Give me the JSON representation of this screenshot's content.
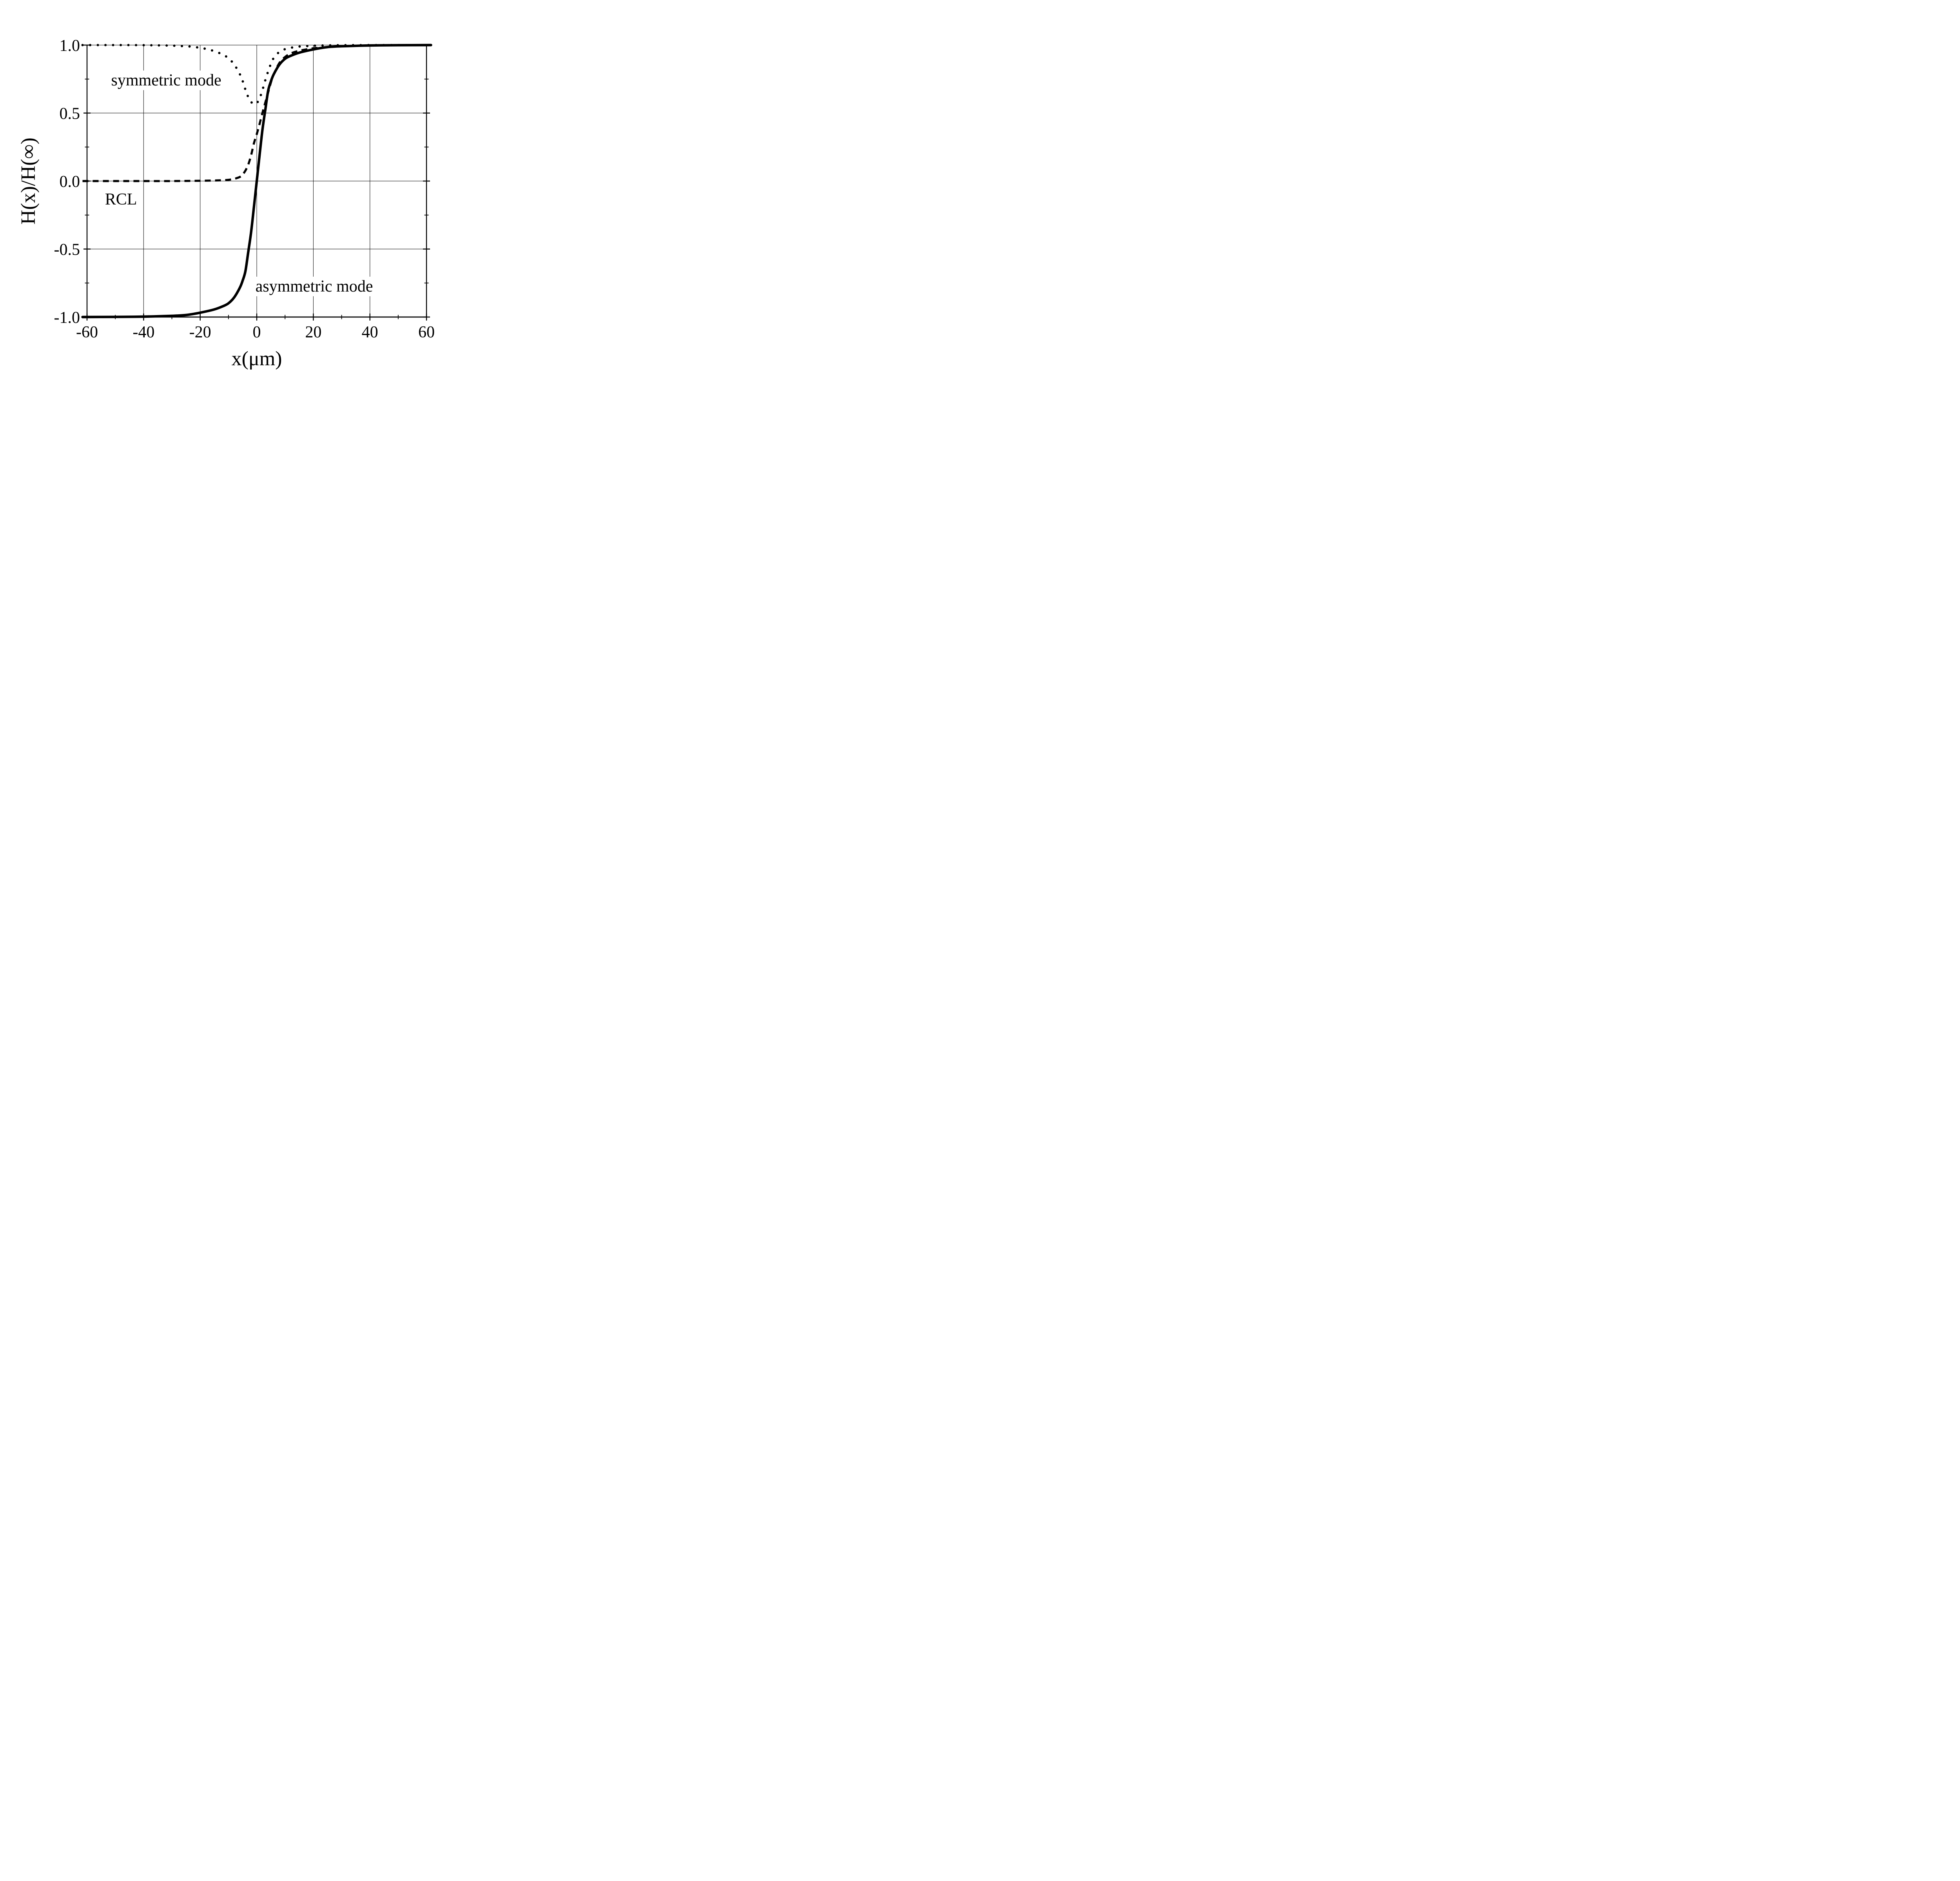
{
  "chart_data": {
    "type": "line",
    "title": "",
    "xlabel": "x(μm)",
    "ylabel": "H(x)/H(∞)",
    "xlim": [
      -60,
      60
    ],
    "ylim": [
      -1.0,
      1.0
    ],
    "grid": true,
    "legend_position": "none",
    "colors": {
      "line": "#000000",
      "background": "#ffffff"
    },
    "x_major_ticks": [
      -60,
      -40,
      -20,
      0,
      20,
      40,
      60
    ],
    "x_minor_ticks": [
      -50,
      -30,
      -10,
      10,
      30,
      50
    ],
    "y_major_ticks": [
      -1.0,
      -0.5,
      0.0,
      0.5,
      1.0
    ],
    "y_minor_ticks": [
      -0.75,
      -0.25,
      0.25,
      0.75
    ],
    "x_tick_labels": [
      "-60",
      "-40",
      "-20",
      "0",
      "20",
      "40",
      "60"
    ],
    "y_tick_labels": [
      "-1.0",
      "-0.5",
      "0.0",
      "0.5",
      "1.0"
    ],
    "x_gridlines": [
      -40,
      -20,
      0,
      20,
      40
    ],
    "y_gridlines": [
      1.0,
      0.5,
      0.0,
      -0.5
    ],
    "series": [
      {
        "name": "symmetric mode",
        "linestyle": "dotted",
        "color": "#000000",
        "x": [
          -61.6,
          -55,
          -50,
          -45,
          -40,
          -35,
          -30,
          -27,
          -24,
          -21,
          -18,
          -15,
          -12,
          -10,
          -8,
          -6,
          -5,
          -4,
          -3,
          -2,
          -1,
          0,
          1,
          2,
          3,
          4,
          5,
          6,
          8,
          10,
          12,
          15,
          20,
          25,
          30,
          40,
          50,
          61.6
        ],
        "y": [
          1,
          1,
          1,
          1,
          0.999,
          0.998,
          0.996,
          0.993,
          0.99,
          0.983,
          0.972,
          0.955,
          0.93,
          0.903,
          0.858,
          0.787,
          0.737,
          0.672,
          0.617,
          0.582,
          0.565,
          0.573,
          0.608,
          0.668,
          0.74,
          0.806,
          0.862,
          0.905,
          0.95,
          0.97,
          0.98,
          0.989,
          0.995,
          0.998,
          0.999,
          1,
          1,
          1
        ]
      },
      {
        "name": "RCL",
        "linestyle": "dashed",
        "color": "#000000",
        "x": [
          -61.6,
          -50,
          -40,
          -30,
          -25,
          -20,
          -15,
          -12,
          -10,
          -8,
          -6,
          -5,
          -4,
          -3,
          -2,
          -1,
          0,
          1,
          2,
          3,
          4,
          5,
          6,
          8,
          10,
          12,
          15,
          20,
          25,
          30,
          40,
          50,
          61.6
        ],
        "y": [
          0,
          0,
          0,
          0,
          0.001,
          0.002,
          0.004,
          0.006,
          0.009,
          0.016,
          0.03,
          0.048,
          0.077,
          0.122,
          0.19,
          0.278,
          0.345,
          0.42,
          0.5,
          0.575,
          0.65,
          0.725,
          0.785,
          0.868,
          0.912,
          0.938,
          0.958,
          0.976,
          0.985,
          0.991,
          0.997,
          0.999,
          1
        ]
      },
      {
        "name": "asymmetric mode",
        "linestyle": "solid",
        "color": "#000000",
        "x": [
          -61.6,
          -50,
          -40,
          -30,
          -25,
          -20,
          -15,
          -12,
          -10,
          -8,
          -6,
          -5,
          -4,
          -3,
          -2,
          -1,
          0,
          1,
          2,
          3,
          4,
          5,
          6,
          8,
          10,
          12,
          15,
          20,
          25,
          30,
          40,
          50,
          61.6
        ],
        "y": [
          -1,
          -0.999,
          -0.997,
          -0.991,
          -0.985,
          -0.968,
          -0.944,
          -0.921,
          -0.899,
          -0.856,
          -0.785,
          -0.733,
          -0.662,
          -0.52,
          -0.375,
          -0.19,
          0,
          0.19,
          0.375,
          0.52,
          0.662,
          0.733,
          0.785,
          0.856,
          0.899,
          0.921,
          0.944,
          0.968,
          0.985,
          0.991,
          0.997,
          0.999,
          1
        ]
      }
    ],
    "annotations": [
      {
        "text": "symmetric mode",
        "x": -32.0,
        "y": 0.74
      },
      {
        "text": "RCL",
        "x": -48.0,
        "y": -0.135
      },
      {
        "text": "asymmetric mode",
        "x": 20.3,
        "y": -0.775
      }
    ]
  }
}
